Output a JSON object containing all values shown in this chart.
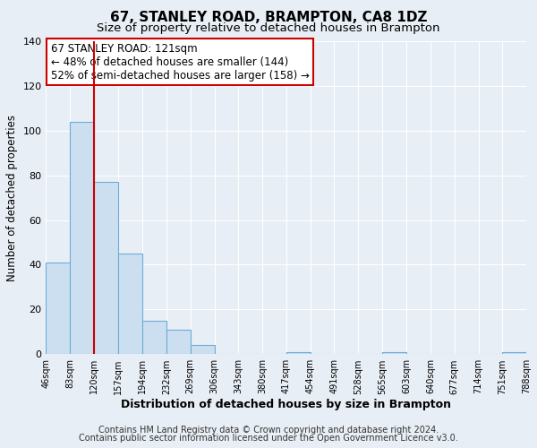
{
  "title": "67, STANLEY ROAD, BRAMPTON, CA8 1DZ",
  "subtitle": "Size of property relative to detached houses in Brampton",
  "xlabel": "Distribution of detached houses by size in Brampton",
  "ylabel": "Number of detached properties",
  "bar_edges": [
    46,
    83,
    120,
    157,
    194,
    232,
    269,
    306,
    343,
    380,
    417,
    454,
    491,
    528,
    565,
    603,
    640,
    677,
    714,
    751,
    788
  ],
  "bar_heights": [
    41,
    104,
    77,
    45,
    15,
    11,
    4,
    0,
    0,
    0,
    1,
    0,
    0,
    0,
    1,
    0,
    0,
    0,
    0,
    1
  ],
  "bar_color": "#ccdff0",
  "bar_edge_color": "#6baed6",
  "vline_x": 120,
  "vline_color": "#cc0000",
  "annotation_line1": "67 STANLEY ROAD: 121sqm",
  "annotation_line2": "← 48% of detached houses are smaller (144)",
  "annotation_line3": "52% of semi-detached houses are larger (158) →",
  "annotation_box_facecolor": "white",
  "annotation_box_edgecolor": "#cc0000",
  "annotation_fontsize": 8.5,
  "ylim": [
    0,
    140
  ],
  "yticks": [
    0,
    20,
    40,
    60,
    80,
    100,
    120,
    140
  ],
  "tick_labels": [
    "46sqm",
    "83sqm",
    "120sqm",
    "157sqm",
    "194sqm",
    "232sqm",
    "269sqm",
    "306sqm",
    "343sqm",
    "380sqm",
    "417sqm",
    "454sqm",
    "491sqm",
    "528sqm",
    "565sqm",
    "603sqm",
    "640sqm",
    "677sqm",
    "714sqm",
    "751sqm",
    "788sqm"
  ],
  "footer_line1": "Contains HM Land Registry data © Crown copyright and database right 2024.",
  "footer_line2": "Contains public sector information licensed under the Open Government Licence v3.0.",
  "background_color": "#e8eef5",
  "plot_background_color": "#e8eef5",
  "title_fontsize": 11,
  "subtitle_fontsize": 9.5,
  "xlabel_fontsize": 9,
  "ylabel_fontsize": 8.5,
  "footer_fontsize": 7,
  "tick_fontsize": 7
}
